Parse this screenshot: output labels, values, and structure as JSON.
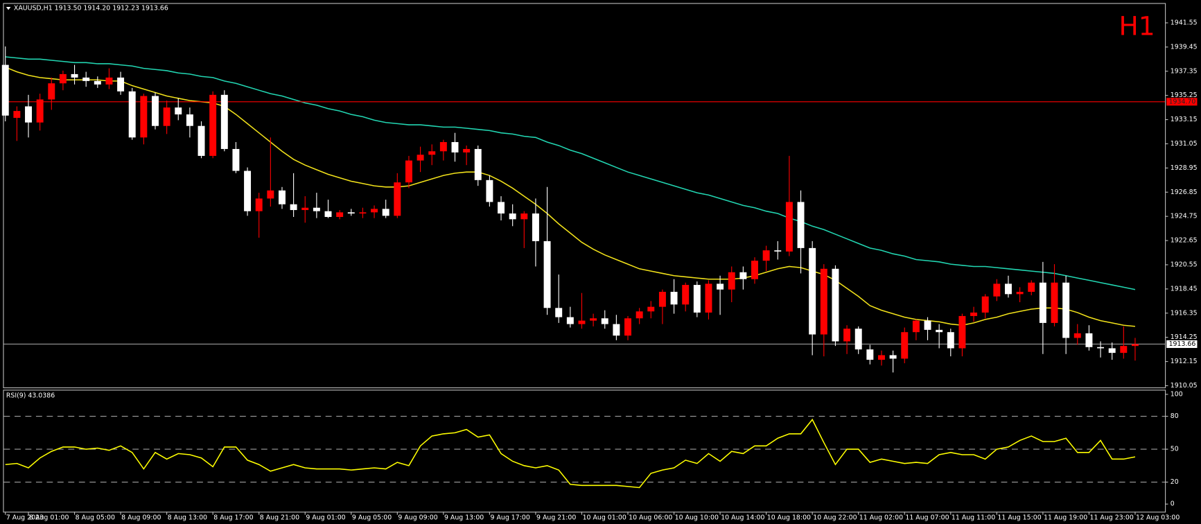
{
  "chart_data": [
    {
      "type": "candlestick",
      "title": "XAUUSD,H1  1913.50 1914.20 1912.23 1913.66",
      "timeframe_label": "H1",
      "categories": [
        "7 Aug 2023",
        null,
        "8 Aug 01:00",
        null,
        null,
        null,
        "8 Aug 05:00",
        null,
        null,
        null,
        "8 Aug 09:00",
        null,
        null,
        null,
        "8 Aug 13:00",
        null,
        null,
        null,
        "8 Aug 17:00",
        null,
        null,
        null,
        "8 Aug 21:00",
        null,
        null,
        null,
        "9 Aug 01:00",
        null,
        null,
        null,
        "9 Aug 05:00",
        null,
        null,
        null,
        "9 Aug 09:00",
        null,
        null,
        null,
        "9 Aug 13:00",
        null,
        null,
        null,
        "9 Aug 17:00",
        null,
        null,
        null,
        "9 Aug 21:00",
        null,
        null,
        null,
        "10 Aug 01:00",
        null,
        null,
        null,
        "10 Aug 06:00",
        null,
        null,
        null,
        "10 Aug 10:00",
        null,
        null,
        null,
        "10 Aug 14:00",
        null,
        null,
        null,
        "10 Aug 18:00",
        null,
        null,
        null,
        "10 Aug 22:00",
        null,
        null,
        null,
        "11 Aug 02:00",
        null,
        null,
        null,
        "11 Aug 07:00",
        null,
        null,
        null,
        "11 Aug 11:00",
        null,
        null,
        null,
        "11 Aug 15:00",
        null,
        null,
        null,
        "11 Aug 19:00",
        null,
        null,
        null,
        "11 Aug 23:00",
        null,
        null,
        null,
        "12 Aug 03:00"
      ],
      "open": [
        1937.9,
        1933.3,
        1934.3,
        1932.9,
        1934.9,
        1936.3,
        1937.1,
        1936.8,
        1936.5,
        1936.2,
        1936.8,
        1935.6,
        1931.6,
        1935.2,
        1932.6,
        1934.2,
        1933.6,
        1932.6,
        1930.0,
        1935.3,
        1930.6,
        1928.7,
        1925.2,
        1926.3,
        1927.0,
        1925.8,
        1925.3,
        1925.5,
        1925.2,
        1924.7,
        1925.1,
        1925.0,
        1925.1,
        1925.4,
        1924.8,
        1927.7,
        1929.6,
        1930.1,
        1930.4,
        1931.2,
        1930.3,
        1930.6,
        1927.9,
        1926.0,
        1925.0,
        1924.5,
        1925.0,
        1922.6,
        1916.8,
        1916.0,
        1915.4,
        1915.7,
        1915.9,
        1915.4,
        1914.4,
        1915.9,
        1916.5,
        1916.9,
        1918.2,
        1917.1,
        1918.8,
        1916.4,
        1918.9,
        1918.4,
        1919.9,
        1919.3,
        1920.9,
        1921.8,
        1921.7,
        1926.0,
        1922.0,
        1914.5,
        1920.2,
        1913.9,
        1915.0,
        1913.2,
        1912.3,
        1912.7,
        1912.4,
        1914.7,
        1915.7,
        1914.9,
        1914.7,
        1913.3,
        1916.1,
        1916.4,
        1917.8,
        1918.9,
        1918.0,
        1918.2,
        1919.0,
        1915.5,
        1919.0,
        1914.2,
        1914.6,
        1913.4,
        1913.3,
        1912.9,
        1913.5
      ],
      "high": [
        1939.5,
        1934.3,
        1935.3,
        1935.4,
        1936.8,
        1937.4,
        1937.9,
        1937.3,
        1936.9,
        1937.6,
        1937.3,
        1935.9,
        1935.4,
        1935.5,
        1934.8,
        1935.0,
        1934.2,
        1933.0,
        1935.6,
        1935.7,
        1931.2,
        1929.0,
        1926.8,
        1931.6,
        1927.3,
        1928.5,
        1926.5,
        1926.8,
        1926.2,
        1925.3,
        1925.4,
        1925.5,
        1925.7,
        1926.2,
        1928.5,
        1930.0,
        1930.8,
        1931.0,
        1931.4,
        1932.0,
        1930.9,
        1930.9,
        1928.3,
        1926.5,
        1925.8,
        1925.2,
        1926.3,
        1927.3,
        1919.7,
        1916.9,
        1918.1,
        1916.3,
        1916.6,
        1916.2,
        1916.1,
        1916.8,
        1917.4,
        1918.4,
        1919.3,
        1919.0,
        1919.1,
        1919.2,
        1919.6,
        1920.4,
        1920.4,
        1921.2,
        1922.2,
        1922.6,
        1930.0,
        1927.0,
        1922.6,
        1920.6,
        1920.5,
        1915.3,
        1915.2,
        1913.6,
        1913.1,
        1913.1,
        1915.1,
        1915.8,
        1916.0,
        1915.4,
        1915.0,
        1916.3,
        1916.9,
        1918.0,
        1919.3,
        1919.6,
        1918.6,
        1919.2,
        1920.8,
        1920.6,
        1919.6,
        1915.4,
        1915.3,
        1913.9,
        1913.8,
        1915.2,
        1914.2
      ],
      "low": [
        1933.0,
        1931.3,
        1931.6,
        1932.2,
        1934.0,
        1935.7,
        1936.2,
        1936.0,
        1935.9,
        1935.8,
        1935.3,
        1931.4,
        1931.0,
        1932.3,
        1931.9,
        1933.1,
        1931.6,
        1929.8,
        1929.8,
        1930.4,
        1928.5,
        1924.8,
        1922.9,
        1925.6,
        1925.4,
        1924.7,
        1924.2,
        1924.6,
        1924.6,
        1924.5,
        1924.8,
        1924.6,
        1924.6,
        1924.6,
        1924.6,
        1927.2,
        1928.6,
        1929.2,
        1929.6,
        1929.5,
        1929.2,
        1927.4,
        1925.6,
        1924.4,
        1923.9,
        1922.0,
        1920.4,
        1916.2,
        1915.5,
        1915.1,
        1915.0,
        1915.2,
        1915.0,
        1914.0,
        1914.0,
        1915.4,
        1915.9,
        1915.4,
        1916.3,
        1916.5,
        1916.0,
        1915.8,
        1916.2,
        1917.3,
        1918.4,
        1918.9,
        1920.0,
        1921.0,
        1921.3,
        1919.8,
        1912.7,
        1912.6,
        1913.5,
        1912.8,
        1912.8,
        1911.9,
        1911.8,
        1911.2,
        1912.0,
        1914.0,
        1914.0,
        1913.3,
        1912.6,
        1912.6,
        1915.6,
        1915.9,
        1917.4,
        1917.7,
        1917.3,
        1917.9,
        1912.8,
        1915.2,
        1912.8,
        1913.6,
        1913.1,
        1912.5,
        1912.3,
        1912.4,
        1912.23
      ],
      "close": [
        1933.5,
        1933.9,
        1932.9,
        1934.9,
        1936.3,
        1937.1,
        1936.8,
        1936.5,
        1936.2,
        1936.8,
        1935.6,
        1931.6,
        1935.2,
        1932.6,
        1934.2,
        1933.6,
        1932.6,
        1930.0,
        1935.3,
        1930.6,
        1928.7,
        1925.2,
        1926.3,
        1927.0,
        1925.8,
        1925.3,
        1925.5,
        1925.2,
        1924.7,
        1925.1,
        1925.0,
        1925.1,
        1925.4,
        1924.8,
        1927.7,
        1929.6,
        1930.1,
        1930.4,
        1931.2,
        1930.3,
        1930.6,
        1927.9,
        1926.0,
        1925.0,
        1924.5,
        1925.0,
        1922.6,
        1916.8,
        1916.0,
        1915.4,
        1915.7,
        1915.9,
        1915.4,
        1914.4,
        1915.9,
        1916.5,
        1916.9,
        1918.2,
        1917.1,
        1918.8,
        1916.4,
        1918.9,
        1918.4,
        1919.9,
        1919.3,
        1920.9,
        1921.8,
        1921.7,
        1926.0,
        1922.0,
        1914.5,
        1920.2,
        1913.9,
        1915.0,
        1913.2,
        1912.3,
        1912.7,
        1912.4,
        1914.7,
        1915.7,
        1914.9,
        1914.7,
        1913.3,
        1916.1,
        1916.4,
        1917.8,
        1918.9,
        1918.0,
        1918.2,
        1919.0,
        1915.5,
        1919.0,
        1914.2,
        1914.6,
        1913.4,
        1913.3,
        1912.9,
        1913.5,
        1913.66
      ],
      "up_color": "#ff0000",
      "down_color": "#ffffff",
      "series": [
        {
          "color": "#f2e21a",
          "values": [
            1937.7,
            1937.3,
            1937.0,
            1936.8,
            1936.7,
            1936.6,
            1936.6,
            1936.6,
            1936.6,
            1936.5,
            1936.5,
            1936.1,
            1935.8,
            1935.5,
            1935.2,
            1935.0,
            1934.8,
            1934.7,
            1934.6,
            1934.3,
            1933.6,
            1932.8,
            1932.0,
            1931.2,
            1930.4,
            1929.7,
            1929.2,
            1928.8,
            1928.4,
            1928.1,
            1927.8,
            1927.6,
            1927.4,
            1927.3,
            1927.3,
            1927.4,
            1927.7,
            1928.0,
            1928.3,
            1928.5,
            1928.6,
            1928.6,
            1928.3,
            1927.8,
            1927.2,
            1926.5,
            1925.8,
            1925.0,
            1924.1,
            1923.3,
            1922.5,
            1921.9,
            1921.4,
            1921.0,
            1920.6,
            1920.2,
            1920.0,
            1919.8,
            1919.6,
            1919.5,
            1919.4,
            1919.3,
            1919.3,
            1919.3,
            1919.4,
            1919.6,
            1919.9,
            1920.2,
            1920.4,
            1920.3,
            1920.0,
            1919.7,
            1919.2,
            1918.5,
            1917.8,
            1917.0,
            1916.6,
            1916.3,
            1916.0,
            1915.8,
            1915.7,
            1915.6,
            1915.4,
            1915.3,
            1915.5,
            1915.8,
            1916.0,
            1916.3,
            1916.5,
            1916.7,
            1916.8,
            1916.8,
            1916.7,
            1916.4,
            1916.0,
            1915.7,
            1915.5,
            1915.3,
            1915.2
          ]
        },
        {
          "color": "#22d6b2",
          "values": [
            1938.6,
            1938.5,
            1938.4,
            1938.4,
            1938.3,
            1938.2,
            1938.1,
            1938.1,
            1938.0,
            1938.0,
            1937.9,
            1937.8,
            1937.6,
            1937.5,
            1937.4,
            1937.2,
            1937.1,
            1936.9,
            1936.8,
            1936.5,
            1936.3,
            1936.0,
            1935.7,
            1935.4,
            1935.2,
            1934.9,
            1934.6,
            1934.4,
            1934.1,
            1933.9,
            1933.6,
            1933.4,
            1933.1,
            1932.9,
            1932.8,
            1932.7,
            1932.7,
            1932.6,
            1932.5,
            1932.5,
            1932.4,
            1932.3,
            1932.2,
            1932.0,
            1931.9,
            1931.7,
            1931.6,
            1931.2,
            1930.9,
            1930.5,
            1930.2,
            1929.8,
            1929.4,
            1929.0,
            1928.6,
            1928.3,
            1928.0,
            1927.7,
            1927.4,
            1927.1,
            1926.8,
            1926.6,
            1926.3,
            1926.0,
            1925.7,
            1925.5,
            1925.2,
            1925.0,
            1924.6,
            1924.3,
            1923.9,
            1923.6,
            1923.2,
            1922.8,
            1922.4,
            1922.0,
            1921.8,
            1921.5,
            1921.3,
            1921.0,
            1920.9,
            1920.8,
            1920.6,
            1920.5,
            1920.4,
            1920.4,
            1920.3,
            1920.2,
            1920.1,
            1920.0,
            1919.9,
            1919.8,
            1919.6,
            1919.4,
            1919.2,
            1919.0,
            1918.8,
            1918.6,
            1918.4
          ]
        }
      ],
      "hlines": [
        {
          "value": 1934.7,
          "label": "1934.70",
          "color": "#ff0000"
        },
        {
          "value": 1913.66,
          "color": "#9a9a9a"
        }
      ],
      "ylim": [
        1909.9,
        1943.2
      ],
      "yticks": [
        1941.55,
        1939.45,
        1937.35,
        1935.25,
        1933.15,
        1931.05,
        1928.95,
        1926.85,
        1924.75,
        1922.65,
        1920.55,
        1918.45,
        1916.35,
        1914.25,
        1912.15,
        1910.05
      ]
    },
    {
      "type": "line",
      "title": "RSI(9) 43.0386",
      "color": "#ffff00",
      "values": [
        36,
        37,
        33,
        42,
        48,
        52,
        52,
        50,
        51,
        49,
        53,
        47,
        32,
        47,
        41,
        46,
        45,
        42,
        34,
        52,
        52,
        40,
        36,
        30,
        33,
        36,
        33,
        32,
        32,
        32,
        31,
        32,
        33,
        32,
        38,
        35,
        53,
        62,
        64,
        65,
        68,
        61,
        63,
        46,
        39,
        35,
        33,
        35,
        31,
        18,
        17,
        17,
        17,
        17,
        16,
        15,
        28,
        31,
        33,
        40,
        37,
        46,
        39,
        48,
        46,
        53,
        53,
        60,
        64,
        64,
        77,
        56,
        36,
        50,
        50,
        38,
        41,
        39,
        37,
        38,
        37,
        45,
        47,
        45,
        45,
        41,
        50,
        52,
        58,
        62,
        57,
        57,
        60,
        47,
        47,
        58,
        41,
        41,
        43.0386
      ],
      "ylim": [
        0,
        100
      ],
      "yticks": [
        100,
        80,
        50,
        20,
        0
      ],
      "levels": [
        80,
        50,
        20
      ]
    }
  ]
}
